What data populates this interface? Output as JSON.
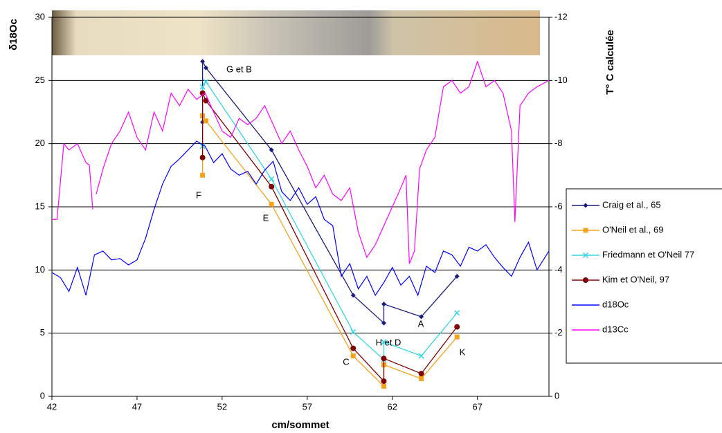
{
  "chart_data": {
    "type": "line",
    "y_label": "δ18Oc",
    "y2_label": "T° C calculée",
    "x_label": "cm/sommet",
    "xlim": [
      42,
      71.2
    ],
    "xticks": [
      42,
      47,
      52,
      57,
      62,
      67
    ],
    "ylim": [
      0,
      30
    ],
    "yticks": [
      0,
      5,
      10,
      15,
      20,
      25,
      30
    ],
    "y2lim": [
      0,
      -12
    ],
    "y2ticks": [
      0,
      -2,
      -4,
      -6,
      -8,
      -10,
      -12
    ],
    "grid": true,
    "legend": "right",
    "annotations": [
      "F",
      "G et B",
      "E",
      "C",
      "H et D",
      "A",
      "K"
    ],
    "series": [
      {
        "name": "Craig et al., 65",
        "color": "#1a1a80",
        "marker": "diamond",
        "x": [
          50.85,
          50.85,
          51.05,
          54.9,
          59.7,
          61.5,
          61.5,
          63.7,
          65.8
        ],
        "values": [
          21.7,
          26.5,
          26.0,
          19.5,
          8.0,
          5.8,
          7.3,
          6.3,
          9.5
        ]
      },
      {
        "name": "O'Neil et al., 69",
        "color": "#f7a21b",
        "marker": "square",
        "x": [
          50.85,
          50.85,
          51.05,
          54.9,
          59.7,
          61.5,
          61.5,
          63.7,
          65.8
        ],
        "values": [
          17.5,
          22.2,
          21.8,
          15.2,
          3.2,
          0.8,
          2.5,
          1.4,
          4.7
        ]
      },
      {
        "name": "Friedmann et O'Neil 77",
        "color": "#33d6e6",
        "marker": "x",
        "x": [
          50.85,
          50.85,
          51.05,
          54.9,
          59.7,
          61.5,
          61.5,
          63.7,
          65.8
        ],
        "values": [
          19.8,
          24.5,
          24.9,
          17.2,
          5.1,
          2.9,
          4.3,
          3.2,
          6.6
        ]
      },
      {
        "name": "Kim et O'Neil, 97",
        "color": "#800000",
        "marker": "circle",
        "x": [
          50.85,
          50.85,
          51.05,
          54.9,
          59.7,
          61.5,
          61.5,
          63.7,
          65.8
        ],
        "values": [
          18.9,
          24.0,
          23.4,
          16.6,
          3.8,
          1.2,
          3.0,
          1.8,
          5.5
        ]
      },
      {
        "name": "d18Oc",
        "color": "#0000ff",
        "marker": "none",
        "x": [
          42,
          42.5,
          43,
          43.5,
          44,
          44.5,
          45,
          45.5,
          46,
          46.5,
          47,
          47.5,
          48,
          48.5,
          49,
          49.5,
          50,
          50.5,
          51,
          51.5,
          52,
          52.5,
          53,
          53.5,
          54,
          54.5,
          55,
          55.5,
          56,
          56.5,
          57,
          57.5,
          58,
          58.5,
          59,
          59.5,
          60,
          60.5,
          61,
          61.5,
          62,
          62.5,
          63,
          63.5,
          64,
          64.5,
          65,
          65.5,
          66,
          66.5,
          67,
          67.5,
          68,
          68.5,
          69,
          69.5,
          70,
          70.5,
          71.2
        ],
        "values": [
          9.8,
          9.4,
          8.3,
          10.2,
          8.0,
          11.2,
          11.5,
          10.8,
          10.9,
          10.4,
          10.8,
          12.5,
          14.8,
          16.8,
          18.2,
          18.8,
          19.5,
          20.2,
          19.8,
          18.5,
          19.2,
          18.0,
          17.5,
          17.8,
          16.8,
          17.9,
          18.6,
          16.2,
          15.5,
          16.5,
          15.2,
          15.8,
          14.0,
          13.5,
          9.5,
          10.5,
          8.5,
          9.5,
          8.0,
          9.0,
          10.2,
          8.8,
          9.5,
          8.0,
          10.3,
          9.8,
          11.5,
          11.2,
          10.3,
          11.8,
          11.5,
          12.0,
          11.0,
          10.2,
          9.5,
          11.0,
          12.2,
          10.0,
          11.5
        ]
      },
      {
        "name": "d13Cc",
        "color": "#ff00ff",
        "marker": "none",
        "x": [
          42,
          42.3,
          42.7,
          43,
          43.5,
          44,
          44.2,
          44.4,
          44.5,
          44.6,
          45,
          45.5,
          46,
          46.5,
          47,
          47.5,
          48,
          48.5,
          49,
          49.5,
          50,
          50.5,
          51,
          51.5,
          52,
          52.5,
          53,
          53.5,
          54,
          54.5,
          55,
          55.5,
          56,
          56.5,
          57,
          57.5,
          58,
          58.5,
          59,
          59.5,
          60,
          60.5,
          61,
          61.5,
          62,
          62.5,
          62.8,
          63,
          63.3,
          63.6,
          64,
          64.5,
          65,
          65.5,
          66,
          66.5,
          67,
          67.5,
          68,
          68.5,
          69,
          69.2,
          69.5,
          70,
          70.5,
          71.2
        ],
        "values": [
          14,
          14,
          20,
          19.5,
          20,
          18.5,
          18.3,
          14.8,
          null,
          16,
          18,
          20,
          21,
          22.5,
          20.5,
          19.5,
          22.5,
          21,
          24,
          23,
          24.3,
          23.5,
          24,
          22.5,
          21,
          20.5,
          22,
          21.5,
          22,
          23,
          21.5,
          20,
          21,
          19.5,
          18.2,
          16.5,
          17.5,
          16,
          15.5,
          16.5,
          13,
          11,
          12,
          13.5,
          15,
          16.5,
          17.5,
          10.5,
          11.5,
          18,
          19.5,
          20.5,
          24.5,
          25,
          24,
          24.5,
          26.5,
          24.5,
          25,
          24,
          21,
          13.8,
          23,
          24,
          24.5,
          25
        ]
      }
    ]
  }
}
